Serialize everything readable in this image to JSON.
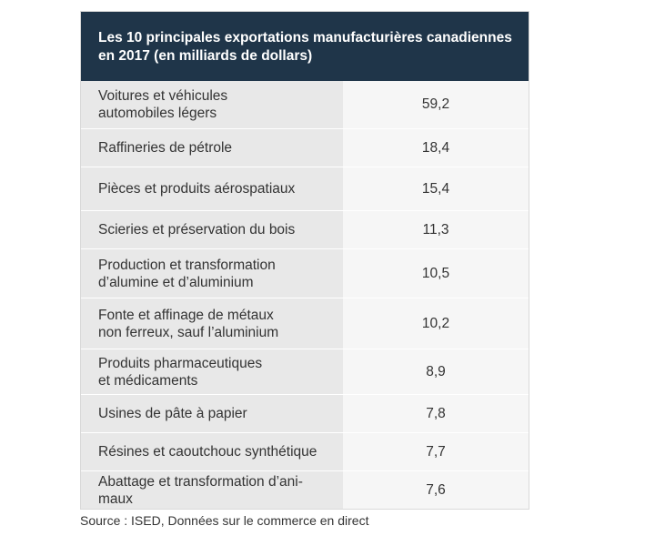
{
  "chart_data": {
    "type": "table",
    "title": "Les 10 principales exportations manufacturières canadiennes en 2017 (en milliards de dollars)",
    "rows": [
      {
        "label": "Voitures et véhicules\nautomobiles légers",
        "value": "59,2"
      },
      {
        "label": "Raffineries de pétrole",
        "value": "18,4"
      },
      {
        "label": "Pièces et produits aérospatiaux",
        "value": "15,4"
      },
      {
        "label": "Scieries et préservation du bois",
        "value": "11,3"
      },
      {
        "label": "Production et transformation\nd’alumine et d’aluminium",
        "value": "10,5"
      },
      {
        "label": "Fonte et affinage de métaux\nnon ferreux, sauf l’aluminium",
        "value": "10,2"
      },
      {
        "label": "Produits pharmaceutiques\net médicaments",
        "value": "8,9"
      },
      {
        "label": "Usines de pâte à papier",
        "value": "7,8"
      },
      {
        "label": "Résines et caoutchouc synthétique",
        "value": "7,7"
      },
      {
        "label": "Abattage et transformation d’ani-\nmaux",
        "value": "7,6"
      }
    ],
    "source": "Source : ISED, Données sur le commerce en direct"
  }
}
